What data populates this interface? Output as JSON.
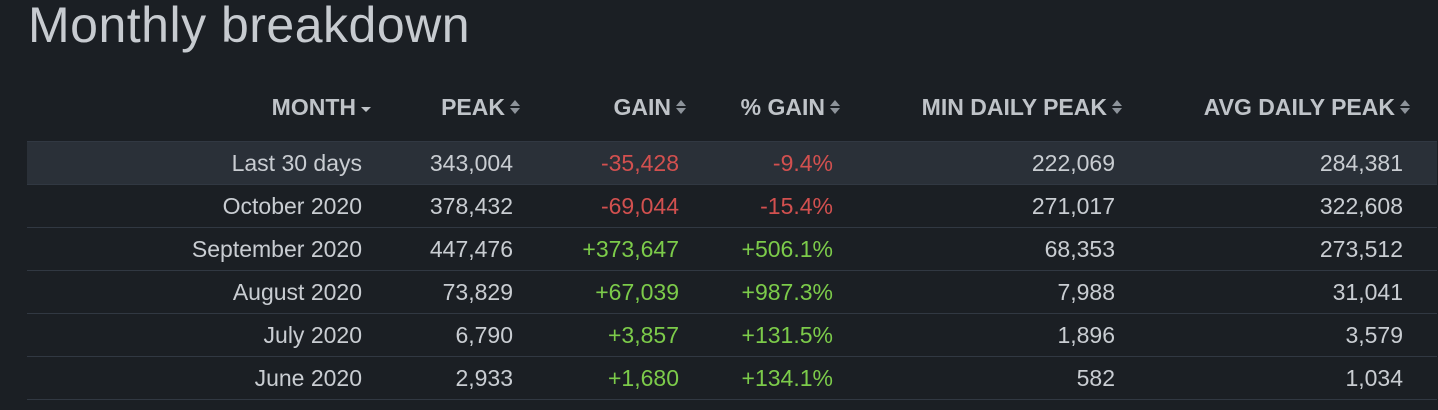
{
  "title": "Monthly breakdown",
  "colors": {
    "background": "#1b1f24",
    "highlight_row": "#2a3038",
    "negative": "#d2504f",
    "positive": "#7ccb4a",
    "text": "#c9cdd2"
  },
  "columns": {
    "month": "MONTH",
    "peak": "PEAK",
    "gain": "GAIN",
    "pct_gain": "% GAIN",
    "min_daily_peak": "MIN DAILY PEAK",
    "avg_daily_peak": "AVG DAILY PEAK"
  },
  "sort": {
    "active_column": "month",
    "direction": "descending"
  },
  "rows": [
    {
      "month": "Last 30 days",
      "peak": "343,004",
      "gain": "-35,428",
      "pct_gain": "-9.4%",
      "min_daily_peak": "222,069",
      "avg_daily_peak": "284,381"
    },
    {
      "month": "October 2020",
      "peak": "378,432",
      "gain": "-69,044",
      "pct_gain": "-15.4%",
      "min_daily_peak": "271,017",
      "avg_daily_peak": "322,608"
    },
    {
      "month": "September 2020",
      "peak": "447,476",
      "gain": "+373,647",
      "pct_gain": "+506.1%",
      "min_daily_peak": "68,353",
      "avg_daily_peak": "273,512"
    },
    {
      "month": "August 2020",
      "peak": "73,829",
      "gain": "+67,039",
      "pct_gain": "+987.3%",
      "min_daily_peak": "7,988",
      "avg_daily_peak": "31,041"
    },
    {
      "month": "July 2020",
      "peak": "6,790",
      "gain": "+3,857",
      "pct_gain": "+131.5%",
      "min_daily_peak": "1,896",
      "avg_daily_peak": "3,579"
    },
    {
      "month": "June 2020",
      "peak": "2,933",
      "gain": "+1,680",
      "pct_gain": "+134.1%",
      "min_daily_peak": "582",
      "avg_daily_peak": "1,034"
    }
  ]
}
